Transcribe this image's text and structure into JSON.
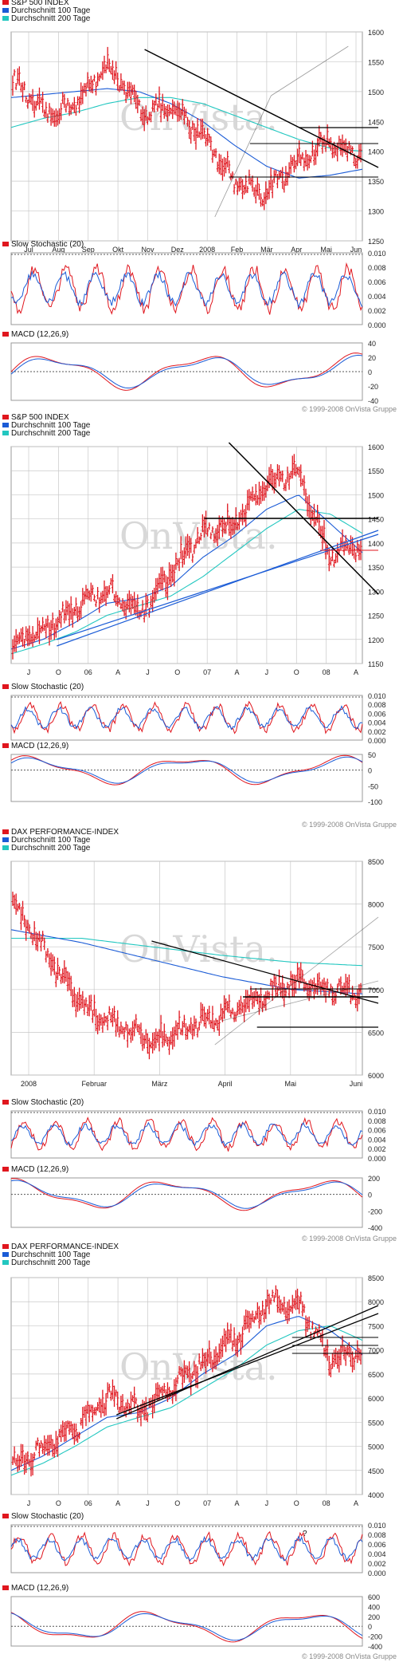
{
  "copyright": "© 1999-2008 OnVista Gruppe",
  "watermark": "OnVista.",
  "colors": {
    "price": "#e0161e",
    "ma100": "#1a5bd6",
    "ma200": "#22c7c0",
    "trend": "#000000",
    "grid": "#c8c8c8",
    "panel_bg": "#ececec"
  },
  "charts": [
    {
      "legend": [
        {
          "label": "S&P 500 INDEX",
          "color": "#e0161e"
        },
        {
          "label": "Durchschnitt 100 Tage",
          "color": "#1a5bd6"
        },
        {
          "label": "Durchschnitt 200 Tage",
          "color": "#22c7c0"
        }
      ],
      "x_labels": [
        "Jul",
        "Aug",
        "Sep",
        "Okt",
        "Nov",
        "Dez",
        "2008",
        "Feb",
        "Mär",
        "Apr",
        "Mai",
        "Jun"
      ],
      "y_ticks": [
        "1600",
        "1550",
        "1500",
        "1450",
        "1400",
        "1350",
        "1300",
        "1250"
      ],
      "stoch_title": "Slow Stochastic (20)",
      "stoch_ticks": [
        "0.010",
        "0.008",
        "0.006",
        "0.004",
        "0.002",
        "0.000"
      ],
      "macd_title": "MACD (12,26,9)",
      "macd_ticks": [
        "40",
        "20",
        "0",
        "-20",
        "-40"
      ]
    },
    {
      "legend": [
        {
          "label": "S&P 500 INDEX",
          "color": "#e0161e"
        },
        {
          "label": "Durchschnitt 100 Tage",
          "color": "#1a5bd6"
        },
        {
          "label": "Durchschnitt 200 Tage",
          "color": "#22c7c0"
        }
      ],
      "x_labels": [
        "J",
        "O",
        "06",
        "A",
        "J",
        "O",
        "07",
        "A",
        "J",
        "O",
        "08",
        "A"
      ],
      "y_ticks": [
        "1600",
        "1550",
        "1500",
        "1450",
        "1400",
        "1350",
        "1300",
        "1250",
        "1200",
        "1150"
      ],
      "stoch_title": "Slow Stochastic (20)",
      "stoch_ticks": [
        "0.010",
        "0.008",
        "0.006",
        "0.004",
        "0.002",
        "0.000"
      ],
      "macd_title": "MACD (12,26,9)",
      "macd_ticks": [
        "50",
        "0",
        "-50",
        "-100"
      ]
    },
    {
      "legend": [
        {
          "label": "DAX PERFORMANCE-INDEX",
          "color": "#e0161e"
        },
        {
          "label": "Durchschnitt 100 Tage",
          "color": "#1a5bd6"
        },
        {
          "label": "Durchschnitt 200 Tage",
          "color": "#22c7c0"
        }
      ],
      "x_labels": [
        "2008",
        "Februar",
        "März",
        "April",
        "Mai",
        "Juni"
      ],
      "y_ticks": [
        "8500",
        "8000",
        "7500",
        "7000",
        "6500",
        "6000"
      ],
      "stoch_title": "Slow Stochastic (20)",
      "stoch_ticks": [
        "0.010",
        "0.008",
        "0.006",
        "0.004",
        "0.002",
        "0.000"
      ],
      "macd_title": "MACD (12,26,9)",
      "macd_ticks": [
        "200",
        "0",
        "-200",
        "-400"
      ]
    },
    {
      "legend": [
        {
          "label": "DAX PERFORMANCE-INDEX",
          "color": "#e0161e"
        },
        {
          "label": "Durchschnitt 100 Tage",
          "color": "#1a5bd6"
        },
        {
          "label": "Durchschnitt 200 Tage",
          "color": "#22c7c0"
        }
      ],
      "x_labels": [
        "J",
        "O",
        "06",
        "A",
        "J",
        "O",
        "07",
        "A",
        "J",
        "O",
        "08",
        "A"
      ],
      "y_ticks": [
        "8500",
        "8000",
        "7500",
        "7000",
        "6500",
        "6000",
        "5500",
        "5000",
        "4500",
        "4000"
      ],
      "stoch_title": "Slow Stochastic (20)",
      "stoch_ticks": [
        "0.010",
        "0.008",
        "0.006",
        "0.004",
        "0.002",
        "0.000"
      ],
      "stoch_annotation": "?",
      "macd_title": "MACD (12,26,9)",
      "macd_ticks": [
        "600",
        "400",
        "200",
        "0",
        "-200",
        "-400"
      ]
    }
  ],
  "chart_data": [
    {
      "type": "line",
      "title": "S&P 500 INDEX",
      "x": [
        "Jul",
        "Aug",
        "Sep",
        "Okt",
        "Nov",
        "Dez",
        "2008",
        "Feb",
        "Mär",
        "Apr",
        "Mai",
        "Jun"
      ],
      "series": [
        {
          "name": "S&P 500 INDEX",
          "values": [
            1520,
            1460,
            1480,
            1545,
            1470,
            1470,
            1430,
            1350,
            1330,
            1380,
            1420,
            1390
          ]
        },
        {
          "name": "Durchschnitt 100 Tage",
          "values": [
            1490,
            1495,
            1500,
            1505,
            1500,
            1480,
            1450,
            1410,
            1375,
            1355,
            1360,
            1370
          ]
        },
        {
          "name": "Durchschnitt 200 Tage",
          "values": [
            1440,
            1455,
            1465,
            1480,
            1490,
            1490,
            1480,
            1460,
            1440,
            1420,
            1405,
            1400
          ]
        }
      ],
      "ylim": [
        1250,
        1600
      ]
    },
    {
      "type": "line",
      "title": "S&P 500 INDEX",
      "x": [
        "J",
        "O",
        "06",
        "A",
        "J",
        "O",
        "07",
        "A",
        "J",
        "O",
        "08",
        "A"
      ],
      "series": [
        {
          "name": "S&P 500 INDEX",
          "values": [
            1195,
            1220,
            1270,
            1300,
            1250,
            1340,
            1420,
            1440,
            1520,
            1545,
            1380,
            1390
          ]
        },
        {
          "name": "Durchschnitt 100 Tage",
          "values": [
            1180,
            1200,
            1235,
            1275,
            1285,
            1310,
            1370,
            1415,
            1470,
            1500,
            1440,
            1380
          ]
        },
        {
          "name": "Durchschnitt 200 Tage",
          "values": [
            1170,
            1190,
            1215,
            1250,
            1270,
            1290,
            1330,
            1380,
            1430,
            1470,
            1460,
            1420
          ]
        }
      ],
      "ylim": [
        1150,
        1600
      ]
    },
    {
      "type": "line",
      "title": "DAX PERFORMANCE-INDEX",
      "x": [
        "2008",
        "Februar",
        "März",
        "April",
        "Mai",
        "Juni"
      ],
      "series": [
        {
          "name": "DAX PERFORMANCE-INDEX",
          "values": [
            8000,
            6800,
            6400,
            6700,
            7100,
            6950
          ]
        },
        {
          "name": "Durchschnitt 100 Tage",
          "values": [
            7700,
            7550,
            7350,
            7150,
            7000,
            6950
          ]
        },
        {
          "name": "Durchschnitt 200 Tage",
          "values": [
            7600,
            7600,
            7500,
            7400,
            7320,
            7280
          ]
        }
      ],
      "ylim": [
        6000,
        8500
      ]
    },
    {
      "type": "line",
      "title": "DAX PERFORMANCE-INDEX",
      "x": [
        "J",
        "O",
        "06",
        "A",
        "J",
        "O",
        "07",
        "A",
        "J",
        "O",
        "08",
        "A"
      ],
      "series": [
        {
          "name": "DAX PERFORMANCE-INDEX",
          "values": [
            4600,
            5000,
            5400,
            6000,
            5700,
            6200,
            6700,
            7200,
            8000,
            8000,
            6800,
            7000
          ]
        },
        {
          "name": "Durchschnitt 100 Tage",
          "values": [
            4500,
            4800,
            5200,
            5600,
            5700,
            6000,
            6500,
            6900,
            7500,
            7700,
            7400,
            6900
          ]
        },
        {
          "name": "Durchschnitt 200 Tage",
          "values": [
            4400,
            4650,
            5000,
            5400,
            5600,
            5800,
            6200,
            6600,
            7100,
            7400,
            7500,
            7200
          ]
        }
      ],
      "ylim": [
        4000,
        8500
      ]
    }
  ]
}
